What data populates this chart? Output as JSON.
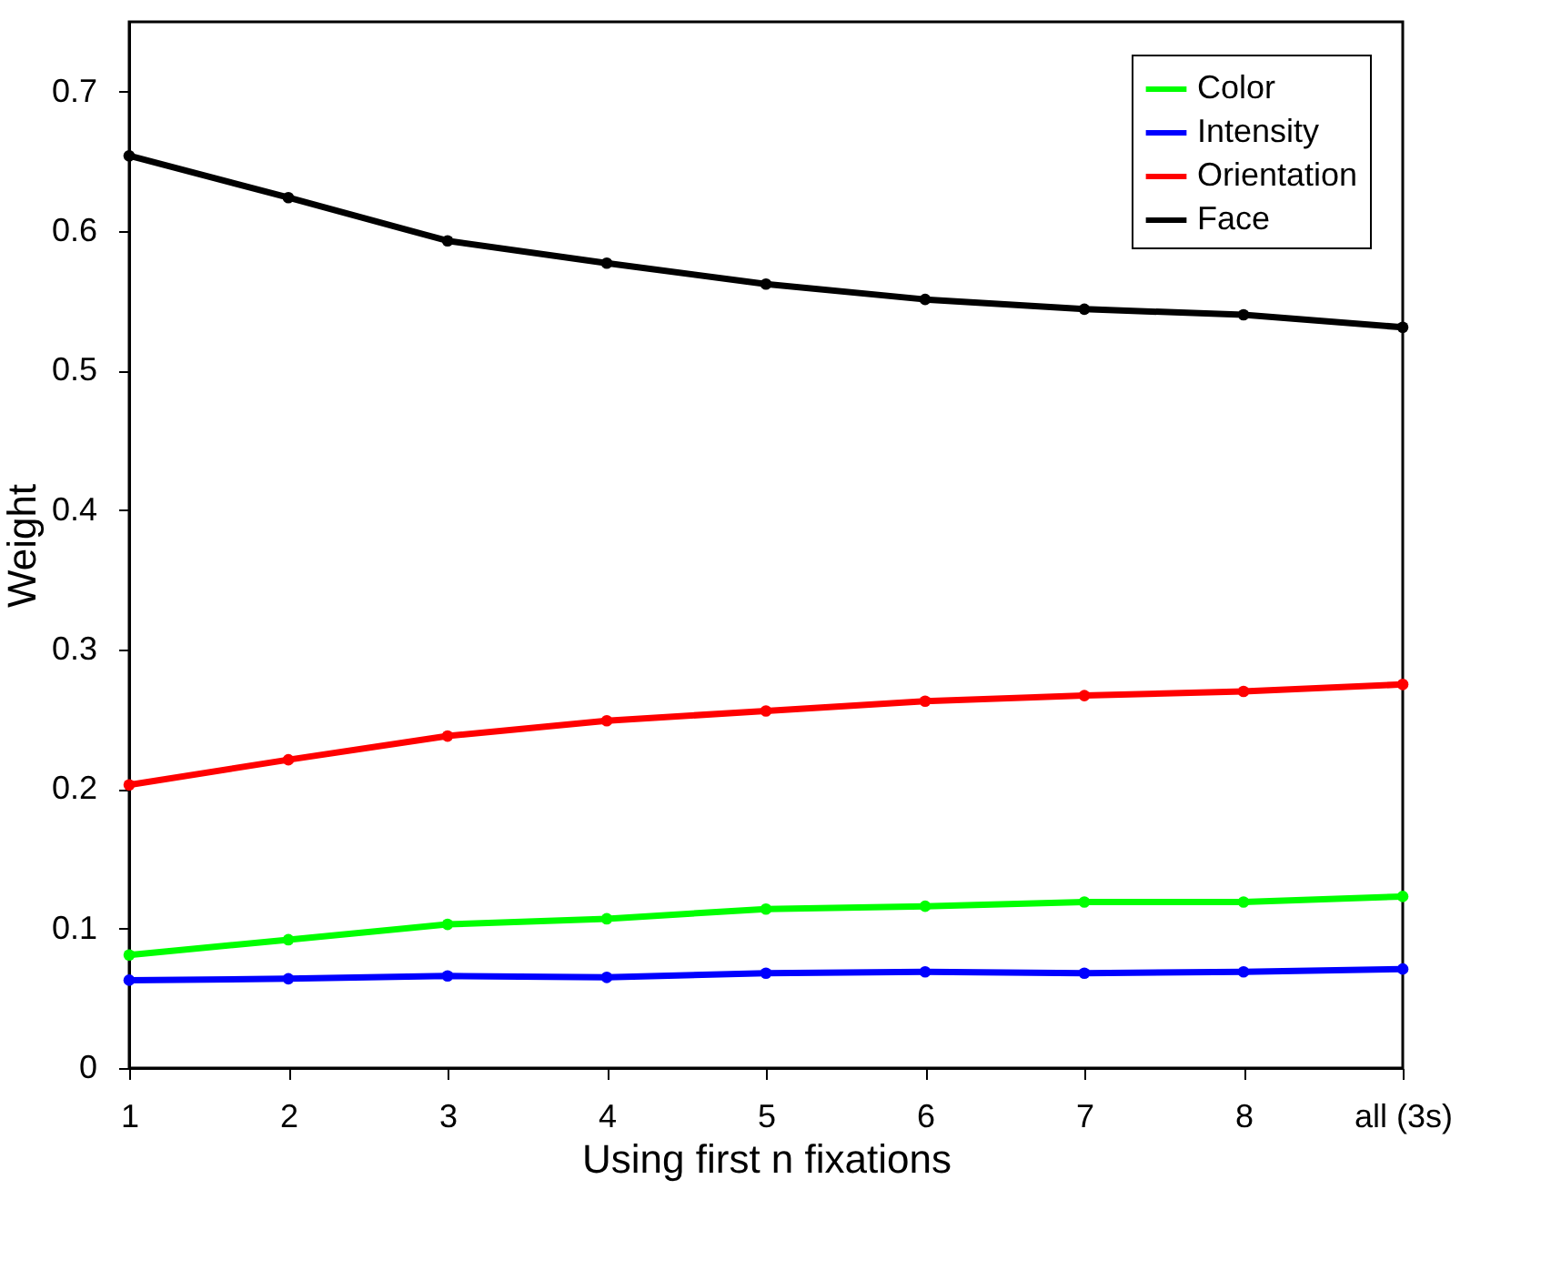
{
  "chart_data": {
    "type": "line",
    "xlabel": "Using first n fixations",
    "ylabel": "Weight",
    "categories": [
      "1",
      "2",
      "3",
      "4",
      "5",
      "6",
      "7",
      "8",
      "all (3s)"
    ],
    "ylim": [
      0,
      0.75
    ],
    "yticks": [
      0,
      0.1,
      0.2,
      0.3,
      0.4,
      0.5,
      0.6,
      0.7
    ],
    "grid": false,
    "legend": "top right",
    "marker": "circle",
    "line_style": "solid",
    "series": [
      {
        "name": "Color",
        "color": "#00ff00",
        "values": [
          0.081,
          0.092,
          0.103,
          0.107,
          0.114,
          0.116,
          0.119,
          0.119,
          0.123
        ]
      },
      {
        "name": "Intensity",
        "color": "#0000ff",
        "values": [
          0.063,
          0.064,
          0.066,
          0.065,
          0.068,
          0.069,
          0.068,
          0.069,
          0.071
        ]
      },
      {
        "name": "Orientation",
        "color": "#ff0000",
        "values": [
          0.203,
          0.221,
          0.238,
          0.249,
          0.256,
          0.263,
          0.267,
          0.27,
          0.275
        ]
      },
      {
        "name": "Face",
        "color": "#000000",
        "values": [
          0.654,
          0.624,
          0.593,
          0.577,
          0.562,
          0.551,
          0.544,
          0.54,
          0.531
        ]
      }
    ]
  }
}
